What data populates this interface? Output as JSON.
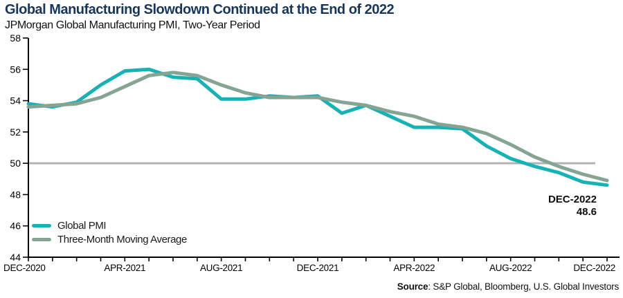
{
  "header": {
    "title": "Global Manufacturing Slowdown Continued at the End of 2022",
    "subtitle": "JPMorgan Global Manufacturing PMI, Two-Year Period"
  },
  "colors": {
    "title": "#16365c",
    "pmi_line": "#16b2b5",
    "ma_line": "#86a494",
    "reference_line": "#b3b3b3",
    "axis": "#000000",
    "text": "#111111"
  },
  "chart_data": {
    "type": "line",
    "x": [
      "DEC-2020",
      "JAN-2021",
      "FEB-2021",
      "MAR-2021",
      "APR-2021",
      "MAY-2021",
      "JUN-2021",
      "JUL-2021",
      "AUG-2021",
      "SEP-2021",
      "OCT-2021",
      "NOV-2021",
      "DEC-2021",
      "JAN-2022",
      "FEB-2022",
      "MAR-2022",
      "APR-2022",
      "MAY-2022",
      "JUN-2022",
      "JUL-2022",
      "AUG-2022",
      "SEP-2022",
      "OCT-2022",
      "NOV-2022",
      "DEC-2022"
    ],
    "series": [
      {
        "name": "Global PMI",
        "values": [
          53.8,
          53.6,
          53.9,
          55.0,
          55.9,
          56.0,
          55.5,
          55.4,
          54.1,
          54.1,
          54.3,
          54.2,
          54.3,
          53.2,
          53.7,
          53.0,
          52.3,
          52.3,
          52.2,
          51.1,
          50.3,
          49.8,
          49.4,
          48.8,
          48.6
        ]
      },
      {
        "name": "Three-Month Moving Average",
        "values": [
          53.6,
          53.7,
          53.8,
          54.2,
          54.9,
          55.6,
          55.8,
          55.6,
          55.0,
          54.5,
          54.2,
          54.2,
          54.2,
          53.9,
          53.7,
          53.3,
          53.0,
          52.5,
          52.3,
          51.9,
          51.2,
          50.4,
          49.8,
          49.3,
          48.9
        ]
      }
    ],
    "ylim": [
      44,
      58
    ],
    "y_ticks": [
      "58",
      "56",
      "54",
      "52",
      "50",
      "48",
      "46",
      "44"
    ],
    "y_tick_values": [
      58,
      56,
      54,
      52,
      50,
      48,
      46,
      44
    ],
    "x_tick_labels": [
      "DEC-2020",
      "APR-2021",
      "AUG-2021",
      "DEC-2021",
      "APR-2022",
      "AUG-2022",
      "DEC-2022"
    ],
    "x_tick_label_indices": [
      0,
      4,
      8,
      12,
      16,
      20,
      24
    ],
    "reference_line": 50,
    "grid": false,
    "legend_position": "bottom-left"
  },
  "legend": {
    "items": [
      {
        "label": "Global PMI"
      },
      {
        "label": "Three-Month Moving Average"
      }
    ]
  },
  "annotation": {
    "label": "DEC-2022",
    "value": "48.6"
  },
  "source": {
    "prefix": "Source",
    "rest": ": S&P Global, Bloomberg, U.S. Global Investors"
  }
}
